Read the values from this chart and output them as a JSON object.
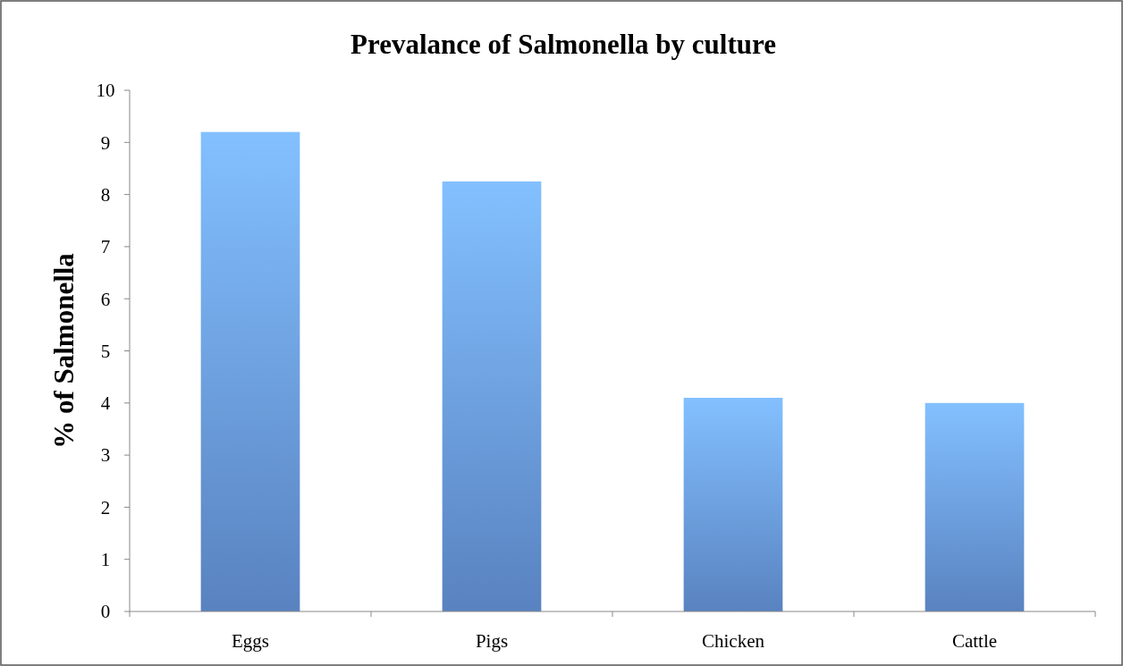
{
  "chart_data": {
    "type": "bar",
    "title": "Prevalance of Salmonella by culture",
    "ylabel": "% of Salmonella",
    "categories": [
      "Eggs",
      "Pigs",
      "Chicken",
      "Cattle"
    ],
    "values": [
      9.2,
      8.25,
      4.1,
      4.0
    ],
    "color": "#6a9be6",
    "ylim": [
      0,
      10
    ],
    "yticks": [
      0,
      1,
      2,
      3,
      4,
      5,
      6,
      7,
      8,
      9,
      10
    ],
    "grid": false
  }
}
